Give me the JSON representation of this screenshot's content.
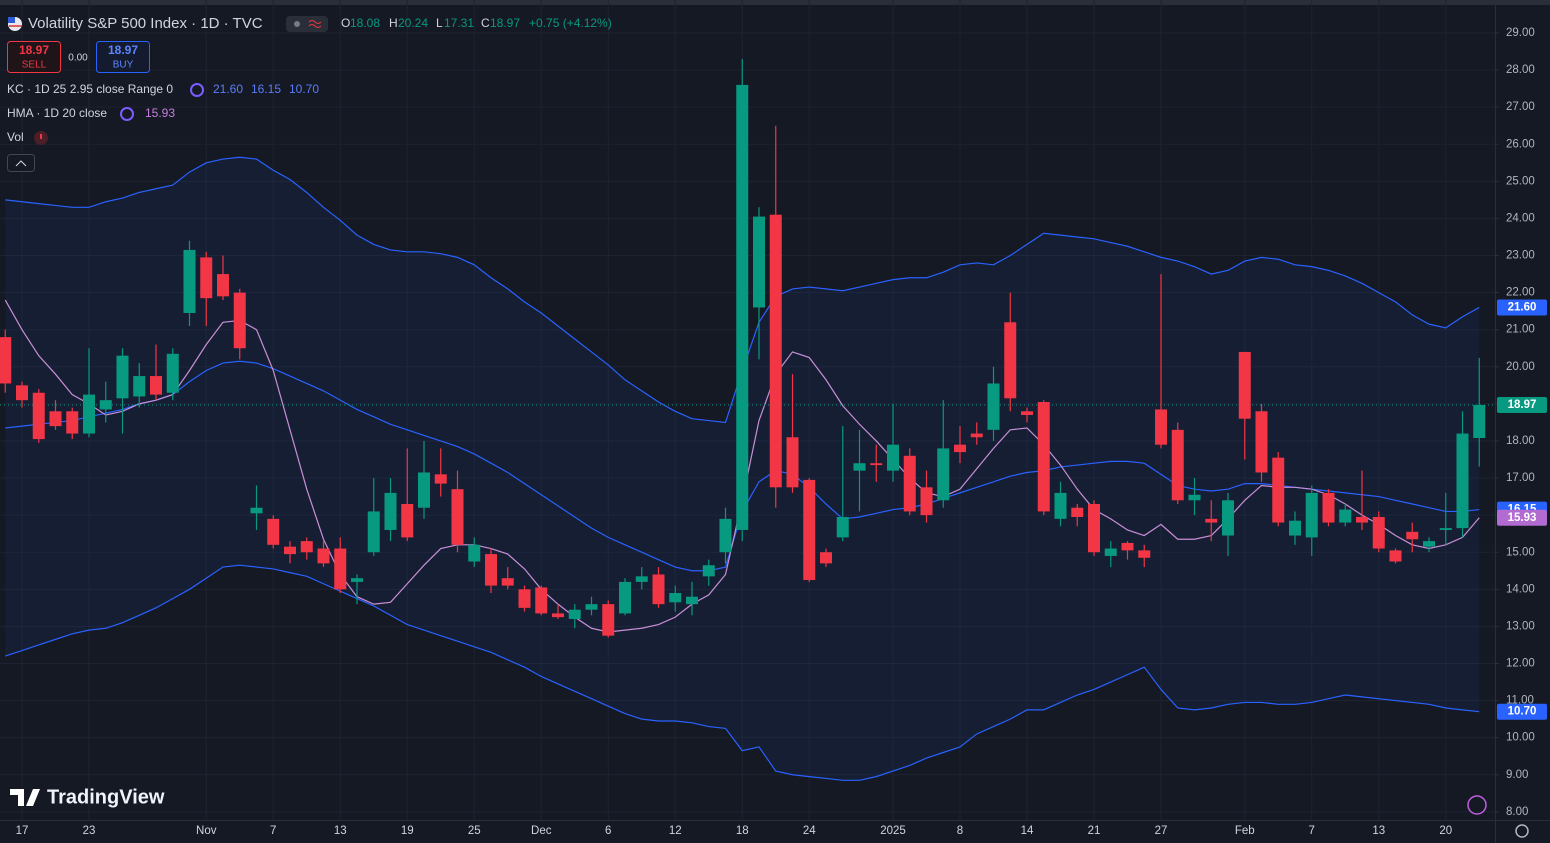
{
  "header": {
    "symbol": "Volatility S&P 500 Index · 1D · TVC",
    "ohlc_keys": [
      "O",
      "H",
      "L",
      "C"
    ],
    "change": "+0.75 (+4.12%)",
    "sell": "SELL",
    "spread": "0.00",
    "buy": "BUY"
  },
  "indicators": [
    {
      "label": "KC · 1D 25 2.95 close Range 0"
    },
    {
      "label": "HMA · 1D 20 close"
    },
    {
      "label": "Vol"
    }
  ],
  "brand": "TradingView",
  "chart_data": {
    "type": "candlestick",
    "categories": [
      null,
      "17",
      null,
      null,
      null,
      "23",
      null,
      null,
      null,
      null,
      null,
      null,
      "Nov",
      null,
      null,
      null,
      "7",
      null,
      null,
      null,
      "13",
      null,
      null,
      null,
      "19",
      null,
      null,
      null,
      "25",
      null,
      null,
      null,
      "Dec",
      null,
      null,
      null,
      "6",
      null,
      null,
      null,
      "12",
      null,
      null,
      null,
      "18",
      null,
      null,
      null,
      "24",
      null,
      null,
      null,
      null,
      "2025",
      null,
      null,
      null,
      "8",
      null,
      null,
      null,
      "14",
      null,
      null,
      null,
      "21",
      null,
      null,
      null,
      "27",
      null,
      null,
      null,
      null,
      "Feb",
      null,
      null,
      null,
      "7",
      null,
      null,
      null,
      "13",
      null,
      null,
      null,
      "20",
      null,
      null
    ],
    "open": [
      20.8,
      19.5,
      19.3,
      18.8,
      18.8,
      18.2,
      18.85,
      19.15,
      19.2,
      19.75,
      19.3,
      21.45,
      22.95,
      22.5,
      22.0,
      16.05,
      15.9,
      15.15,
      15.3,
      15.1,
      15.1,
      14.2,
      15.0,
      15.6,
      16.3,
      16.2,
      17.1,
      16.7,
      14.75,
      14.95,
      14.3,
      14.0,
      14.05,
      13.35,
      13.2,
      13.45,
      13.6,
      13.35,
      14.2,
      14.4,
      13.65,
      13.6,
      14.35,
      15.0,
      15.6,
      21.6,
      24.1,
      18.1,
      16.95,
      15.0,
      15.4,
      17.2,
      17.4,
      17.2,
      17.6,
      16.75,
      16.4,
      17.9,
      18.2,
      18.3,
      21.2,
      18.8,
      19.05,
      15.9,
      16.2,
      16.3,
      14.9,
      15.25,
      15.05,
      18.85,
      18.3,
      16.4,
      15.9,
      15.45,
      20.4,
      18.8,
      17.55,
      15.45,
      15.4,
      16.6,
      15.8,
      15.95,
      15.95,
      15.05,
      15.55,
      15.15,
      15.6,
      15.65,
      18.08
    ],
    "high": [
      21.0,
      19.6,
      19.4,
      19.1,
      18.9,
      20.5,
      19.6,
      20.5,
      20.1,
      20.6,
      20.5,
      23.4,
      23.1,
      23.0,
      22.1,
      16.8,
      16.0,
      15.3,
      15.4,
      15.3,
      15.4,
      14.4,
      17.0,
      17.0,
      17.8,
      18.0,
      17.8,
      17.2,
      15.4,
      15.1,
      14.6,
      14.1,
      14.1,
      13.6,
      13.6,
      13.8,
      13.7,
      14.3,
      14.6,
      14.6,
      14.1,
      14.2,
      14.8,
      16.2,
      28.3,
      24.3,
      26.5,
      19.8,
      17.0,
      15.1,
      18.4,
      18.3,
      17.9,
      19.0,
      17.8,
      17.2,
      19.1,
      18.4,
      18.5,
      20.0,
      22.0,
      18.9,
      19.1,
      16.9,
      16.3,
      16.4,
      15.3,
      15.3,
      15.2,
      22.5,
      18.5,
      17.0,
      16.4,
      16.6,
      20.4,
      19.0,
      17.7,
      16.1,
      16.8,
      16.7,
      16.3,
      17.2,
      16.1,
      15.1,
      15.8,
      15.4,
      16.6,
      18.8,
      20.24
    ],
    "low": [
      19.3,
      18.9,
      17.95,
      18.3,
      18.05,
      18.1,
      18.5,
      18.2,
      18.9,
      19.1,
      19.1,
      21.1,
      21.1,
      21.8,
      20.2,
      15.6,
      15.1,
      14.7,
      14.8,
      14.6,
      13.9,
      13.6,
      14.9,
      15.3,
      15.3,
      15.9,
      16.5,
      15.0,
      14.6,
      13.9,
      14.0,
      13.4,
      13.3,
      13.2,
      12.95,
      13.3,
      12.7,
      13.3,
      14.0,
      13.5,
      13.4,
      13.3,
      14.1,
      14.7,
      15.3,
      20.2,
      16.2,
      16.6,
      14.2,
      14.6,
      15.3,
      16.1,
      16.9,
      16.9,
      16.0,
      15.8,
      16.2,
      17.4,
      17.9,
      18.0,
      18.8,
      18.5,
      16.0,
      15.7,
      15.7,
      14.9,
      14.6,
      14.8,
      14.6,
      17.8,
      16.3,
      16.0,
      15.3,
      14.9,
      17.5,
      16.9,
      15.7,
      15.2,
      14.9,
      15.7,
      15.7,
      15.6,
      15.0,
      14.7,
      15.0,
      15.0,
      15.2,
      15.4,
      17.31
    ],
    "close": [
      19.55,
      19.1,
      18.05,
      18.4,
      18.2,
      19.25,
      19.1,
      20.3,
      19.75,
      19.25,
      20.35,
      23.15,
      21.85,
      21.9,
      20.5,
      16.2,
      15.2,
      14.95,
      15.0,
      14.7,
      14.0,
      14.3,
      16.1,
      16.6,
      15.4,
      17.15,
      16.85,
      15.2,
      15.2,
      14.1,
      14.1,
      13.5,
      13.35,
      13.25,
      13.45,
      13.6,
      12.75,
      14.2,
      14.35,
      13.6,
      13.9,
      13.8,
      14.65,
      15.9,
      27.6,
      24.05,
      16.75,
      16.75,
      14.25,
      14.7,
      15.95,
      17.4,
      17.35,
      17.9,
      16.1,
      16.0,
      17.8,
      17.7,
      18.1,
      19.55,
      19.15,
      18.7,
      16.1,
      16.6,
      15.95,
      15.0,
      15.1,
      15.05,
      14.85,
      17.9,
      16.4,
      16.55,
      15.8,
      16.4,
      18.6,
      17.15,
      15.8,
      15.85,
      16.6,
      15.8,
      16.15,
      15.8,
      15.1,
      14.75,
      15.35,
      15.3,
      15.65,
      18.2,
      18.97
    ],
    "close_label": "18.97",
    "up_color": "#089981",
    "down_color": "#f23645",
    "kc": {
      "color": "#2962ff",
      "upper": [
        24.5,
        24.45,
        24.4,
        24.35,
        24.3,
        24.3,
        24.45,
        24.55,
        24.7,
        24.8,
        24.9,
        25.25,
        25.5,
        25.6,
        25.65,
        25.6,
        25.3,
        25.05,
        24.7,
        24.3,
        23.95,
        23.55,
        23.3,
        23.15,
        23.1,
        23.1,
        23.05,
        22.95,
        22.75,
        22.4,
        22.1,
        21.75,
        21.45,
        21.1,
        20.75,
        20.4,
        20.05,
        19.65,
        19.35,
        19.05,
        18.8,
        18.6,
        18.55,
        18.5,
        19.9,
        21.2,
        21.9,
        22.1,
        22.15,
        22.1,
        22.05,
        22.15,
        22.25,
        22.35,
        22.4,
        22.4,
        22.55,
        22.75,
        22.8,
        22.75,
        23.0,
        23.3,
        23.6,
        23.55,
        23.5,
        23.45,
        23.35,
        23.25,
        23.1,
        22.95,
        22.85,
        22.7,
        22.5,
        22.6,
        22.85,
        22.95,
        22.9,
        22.75,
        22.7,
        22.6,
        22.45,
        22.25,
        22.0,
        21.75,
        21.4,
        21.15,
        21.05,
        21.35,
        21.6
      ],
      "middle": [
        18.35,
        18.4,
        18.45,
        18.5,
        18.55,
        18.65,
        18.75,
        18.85,
        19.0,
        19.1,
        19.25,
        19.6,
        19.9,
        20.1,
        20.15,
        20.1,
        19.95,
        19.75,
        19.55,
        19.35,
        19.1,
        18.85,
        18.65,
        18.45,
        18.3,
        18.15,
        18.0,
        17.85,
        17.65,
        17.4,
        17.15,
        16.85,
        16.55,
        16.25,
        15.95,
        15.65,
        15.4,
        15.2,
        15.0,
        14.8,
        14.6,
        14.5,
        14.5,
        14.6,
        16.1,
        16.9,
        17.2,
        17.1,
        16.75,
        16.3,
        15.9,
        15.95,
        16.05,
        16.15,
        16.2,
        16.3,
        16.45,
        16.6,
        16.75,
        16.9,
        17.05,
        17.15,
        17.2,
        17.3,
        17.35,
        17.4,
        17.45,
        17.45,
        17.4,
        17.1,
        16.8,
        16.7,
        16.65,
        16.7,
        16.85,
        16.85,
        16.8,
        16.75,
        16.7,
        16.65,
        16.6,
        16.55,
        16.5,
        16.4,
        16.3,
        16.2,
        16.1,
        16.1,
        16.15
      ],
      "lower": [
        12.2,
        12.35,
        12.5,
        12.65,
        12.8,
        12.9,
        12.95,
        13.1,
        13.3,
        13.5,
        13.75,
        14.0,
        14.3,
        14.6,
        14.65,
        14.6,
        14.55,
        14.45,
        14.35,
        14.15,
        13.95,
        13.75,
        13.55,
        13.3,
        13.05,
        12.9,
        12.75,
        12.6,
        12.45,
        12.3,
        12.1,
        11.9,
        11.65,
        11.45,
        11.25,
        11.05,
        10.85,
        10.65,
        10.5,
        10.45,
        10.45,
        10.4,
        10.3,
        10.25,
        9.65,
        9.75,
        9.1,
        9.0,
        8.95,
        8.9,
        8.85,
        8.85,
        8.95,
        9.1,
        9.25,
        9.45,
        9.6,
        9.75,
        10.1,
        10.3,
        10.5,
        10.75,
        10.75,
        10.95,
        11.15,
        11.3,
        11.5,
        11.7,
        11.9,
        11.3,
        10.8,
        10.75,
        10.8,
        10.9,
        10.95,
        10.95,
        10.9,
        10.9,
        10.95,
        11.05,
        11.15,
        11.1,
        11.05,
        11.0,
        10.95,
        10.9,
        10.8,
        10.75,
        10.7
      ],
      "labels": {
        "upper": "21.60",
        "middle": "16.15",
        "lower": "10.70"
      }
    },
    "hma": {
      "color": "#c98fd6",
      "tag_color": "#b26bd0",
      "values": [
        21.8,
        21.0,
        20.3,
        19.8,
        19.25,
        19.0,
        18.7,
        18.8,
        19.0,
        19.1,
        19.25,
        19.9,
        20.6,
        21.2,
        21.25,
        21.0,
        19.9,
        18.3,
        16.7,
        15.35,
        14.4,
        13.8,
        13.6,
        13.65,
        14.15,
        14.65,
        15.1,
        15.2,
        15.2,
        15.1,
        14.95,
        14.55,
        14.0,
        13.6,
        13.25,
        12.95,
        12.85,
        12.9,
        12.95,
        13.05,
        13.25,
        13.6,
        13.85,
        14.4,
        16.4,
        18.55,
        19.8,
        20.4,
        20.25,
        19.65,
        18.95,
        18.45,
        18.0,
        17.5,
        17.0,
        16.6,
        16.5,
        16.7,
        17.25,
        17.8,
        18.3,
        18.35,
        17.9,
        17.35,
        16.7,
        16.15,
        15.9,
        15.6,
        15.45,
        15.75,
        15.35,
        15.35,
        15.45,
        15.9,
        16.4,
        16.8,
        16.75,
        16.75,
        16.7,
        16.55,
        16.3,
        16.0,
        15.75,
        15.45,
        15.2,
        15.1,
        15.2,
        15.4,
        15.93
      ],
      "label": "15.93"
    },
    "ylim": [
      7.78,
      29.62
    ],
    "yticks": [
      {
        "value": 8,
        "label": "8.00"
      },
      {
        "value": 9,
        "label": "9.00"
      },
      {
        "value": 10,
        "label": "10.00"
      },
      {
        "value": 11,
        "label": "11.00"
      },
      {
        "value": 12,
        "label": "12.00"
      },
      {
        "value": 13,
        "label": "13.00"
      },
      {
        "value": 14,
        "label": "14.00"
      },
      {
        "value": 15,
        "label": "15.00"
      },
      {
        "value": 16,
        "label": "16.00"
      },
      {
        "value": 17,
        "label": "17.00"
      },
      {
        "value": 18,
        "label": "18.00"
      },
      {
        "value": 19,
        "label": "19.00"
      },
      {
        "value": 20,
        "label": "20.00"
      },
      {
        "value": 21,
        "label": "21.00"
      },
      {
        "value": 22,
        "label": "22.00"
      },
      {
        "value": 23,
        "label": "23.00"
      },
      {
        "value": 24,
        "label": "24.00"
      },
      {
        "value": 25,
        "label": "25.00"
      },
      {
        "value": 26,
        "label": "26.00"
      },
      {
        "value": 27,
        "label": "27.00"
      },
      {
        "value": 28,
        "label": "28.00"
      },
      {
        "value": 29,
        "label": "29.00"
      }
    ],
    "grid": true
  }
}
